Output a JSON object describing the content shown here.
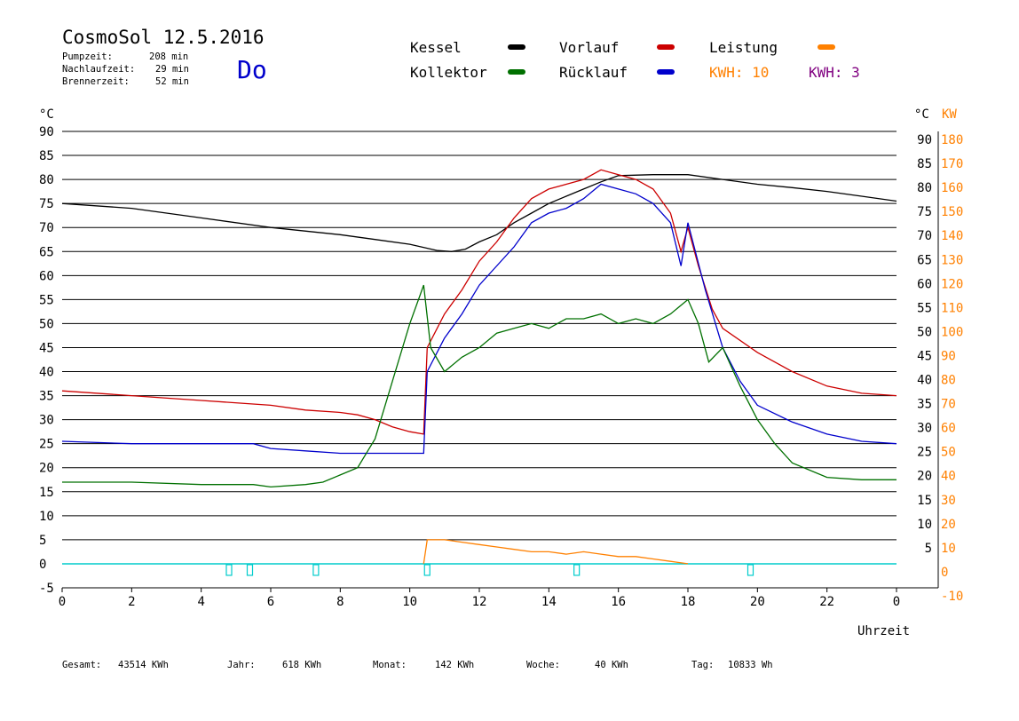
{
  "header": {
    "title": "CosmoSol 12.5.2016",
    "day": "Do",
    "stats": [
      {
        "label": "Pumpzeit:",
        "value": "208 min"
      },
      {
        "label": "Nachlaufzeit:",
        "value": "29 min"
      },
      {
        "label": "Brennerzeit:",
        "value": "52 min"
      }
    ]
  },
  "legend": {
    "kessel": "Kessel",
    "kollektor": "Kollektor",
    "vorlauf": "Vorlauf",
    "ruecklauf": "Rücklauf",
    "leistung": "Leistung",
    "kwh1": "KWH: 10",
    "kwh2": "KWH: 3"
  },
  "colors": {
    "kessel": "#000000",
    "kollektor": "#007000",
    "vorlauf": "#cc0000",
    "ruecklauf": "#0000cc",
    "leistung": "#ff8000",
    "kwh2": "#800080",
    "pump": "#00cccc"
  },
  "footer": [
    {
      "label": "Gesamt:",
      "value": "43514 KWh"
    },
    {
      "label": "Jahr:",
      "value": "618 KWh"
    },
    {
      "label": "Monat:",
      "value": "142 KWh"
    },
    {
      "label": "Woche:",
      "value": "40 KWh"
    },
    {
      "label": "Tag:",
      "value": "10833 Wh"
    }
  ],
  "chart_data": {
    "type": "line",
    "xlabel": "Uhrzeit",
    "ylabel_left": "°C",
    "ylabel_right_temp": "°C",
    "ylabel_right_power": "KW",
    "xlim": [
      0,
      24
    ],
    "ylim": [
      -5,
      90
    ],
    "ylim_power": [
      -10,
      180
    ],
    "x_ticks": [
      "0",
      "2",
      "4",
      "6",
      "8",
      "10",
      "12",
      "14",
      "16",
      "18",
      "20",
      "22",
      "0"
    ],
    "y_ticks_left": [
      "90",
      "85",
      "80",
      "75",
      "70",
      "65",
      "60",
      "55",
      "50",
      "45",
      "40",
      "35",
      "30",
      "25",
      "20",
      "15",
      "10",
      "5",
      "0",
      "-5"
    ],
    "y_ticks_right_temp": [
      "90",
      "85",
      "80",
      "75",
      "70",
      "65",
      "60",
      "55",
      "50",
      "45",
      "40",
      "35",
      "30",
      "25",
      "20",
      "15",
      "10",
      "5"
    ],
    "y_ticks_right_power": [
      "180",
      "170",
      "160",
      "150",
      "140",
      "130",
      "120",
      "110",
      "100",
      "90",
      "80",
      "70",
      "60",
      "50",
      "40",
      "30",
      "20",
      "10",
      "0",
      "-10"
    ],
    "grid": true,
    "series": [
      {
        "name": "Kessel",
        "color": "#000000",
        "x": [
          0,
          2,
          4,
          6,
          8,
          9,
          10,
          10.8,
          11.2,
          11.6,
          12,
          12.5,
          13,
          13.5,
          14,
          14.5,
          15,
          15.5,
          16,
          17,
          18,
          19,
          20,
          21,
          22,
          23,
          24
        ],
        "y": [
          75,
          74,
          72,
          70,
          68.5,
          67.5,
          66.5,
          65.2,
          65,
          65.5,
          67,
          68.5,
          71,
          73,
          75,
          76.5,
          78,
          79.5,
          80.8,
          81,
          81,
          80,
          79,
          78.3,
          77.5,
          76.5,
          75.5
        ]
      },
      {
        "name": "Vorlauf",
        "color": "#cc0000",
        "x": [
          0,
          2,
          4,
          6,
          7,
          8,
          8.5,
          9,
          9.5,
          10,
          10.4,
          10.5,
          11,
          11.5,
          12,
          12.5,
          13,
          13.5,
          14,
          14.5,
          15,
          15.5,
          16,
          16.5,
          17,
          17.5,
          17.8,
          18,
          18.3,
          18.7,
          19,
          20,
          21,
          22,
          23,
          24
        ],
        "y": [
          36,
          35,
          34,
          33,
          32,
          31.5,
          31,
          30,
          28.5,
          27.5,
          27,
          45,
          52,
          57,
          63,
          67,
          72,
          76,
          78,
          79,
          80,
          82,
          81,
          80,
          78,
          73,
          65,
          70,
          62,
          53,
          49,
          44,
          40,
          37,
          35.5,
          35
        ]
      },
      {
        "name": "Rücklauf",
        "color": "#0000cc",
        "x": [
          0,
          2,
          4,
          5.5,
          6,
          7,
          8,
          9,
          10,
          10.4,
          10.5,
          11,
          11.5,
          12,
          12.5,
          13,
          13.5,
          14,
          14.5,
          15,
          15.5,
          16,
          16.5,
          17,
          17.5,
          17.8,
          18,
          18.5,
          19,
          19.5,
          20,
          21,
          22,
          23,
          24
        ],
        "y": [
          25.5,
          25,
          25,
          25,
          24,
          23.5,
          23,
          23,
          23,
          23,
          40,
          47,
          52,
          58,
          62,
          66,
          71,
          73,
          74,
          76,
          79,
          78,
          77,
          75,
          71,
          62,
          71,
          57,
          45,
          38,
          33,
          29.5,
          27,
          25.5,
          25
        ]
      },
      {
        "name": "Kollektor",
        "color": "#007000",
        "x": [
          0,
          2,
          4,
          5,
          5.5,
          6,
          7,
          7.5,
          8,
          8.5,
          9,
          9.5,
          10,
          10.3,
          10.4,
          10.6,
          11,
          11.5,
          12,
          12.5,
          13,
          13.5,
          14,
          14.5,
          15,
          15.5,
          16,
          16.5,
          17,
          17.5,
          18,
          18.3,
          18.6,
          19,
          19.5,
          20,
          20.5,
          21,
          22,
          23,
          24
        ],
        "y": [
          17,
          17,
          16.5,
          16.5,
          16.5,
          16,
          16.5,
          17,
          18.5,
          20,
          26,
          38,
          50,
          56,
          58,
          45,
          40,
          43,
          45,
          48,
          49,
          50,
          49,
          51,
          51,
          52,
          50,
          51,
          50,
          52,
          55,
          50,
          42,
          45,
          37,
          30,
          25,
          21,
          18,
          17.5,
          17.5
        ]
      },
      {
        "name": "Leistung",
        "color": "#ff8000",
        "x": [
          10.4,
          10.5,
          11,
          11.5,
          12,
          12.5,
          13,
          13.5,
          14,
          14.5,
          15,
          15.5,
          16,
          16.5,
          17,
          17.5,
          18
        ],
        "y": [
          0,
          5,
          5,
          4.5,
          4,
          3.5,
          3,
          2.5,
          2.5,
          2,
          2.5,
          2,
          1.5,
          1.5,
          1,
          0.5,
          0
        ]
      }
    ],
    "pump_markers_x": [
      4.8,
      5.4,
      7.3,
      10.5,
      14.8,
      19.8
    ]
  }
}
